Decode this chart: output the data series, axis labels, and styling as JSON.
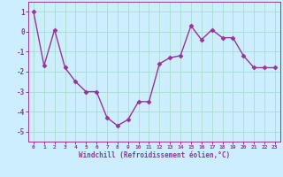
{
  "x": [
    0,
    1,
    2,
    3,
    4,
    5,
    6,
    7,
    8,
    9,
    10,
    11,
    12,
    13,
    14,
    15,
    16,
    17,
    18,
    19,
    20,
    21,
    22,
    23
  ],
  "y": [
    1.0,
    -1.7,
    0.1,
    -1.8,
    -2.5,
    -3.0,
    -3.0,
    -4.3,
    -4.7,
    -4.4,
    -3.5,
    -3.5,
    -1.6,
    -1.3,
    -1.2,
    0.3,
    -0.4,
    0.1,
    -0.3,
    -0.3,
    -1.2,
    -1.8,
    -1.8,
    -1.8
  ],
  "line_color": "#993399",
  "marker": "D",
  "marker_size": 2.5,
  "bg_color": "#cceeff",
  "grid_color": "#aaddcc",
  "xlabel": "Windchill (Refroidissement éolien,°C)",
  "xlabel_color": "#993399",
  "tick_color": "#993399",
  "label_color": "#993399",
  "ylim": [
    -5.5,
    1.5
  ],
  "xlim": [
    -0.5,
    23.5
  ],
  "yticks": [
    1,
    0,
    -1,
    -2,
    -3,
    -4,
    -5
  ],
  "xticks": [
    0,
    1,
    2,
    3,
    4,
    5,
    6,
    7,
    8,
    9,
    10,
    11,
    12,
    13,
    14,
    15,
    16,
    17,
    18,
    19,
    20,
    21,
    22,
    23
  ],
  "spine_color": "#993399",
  "linewidth": 1.0
}
